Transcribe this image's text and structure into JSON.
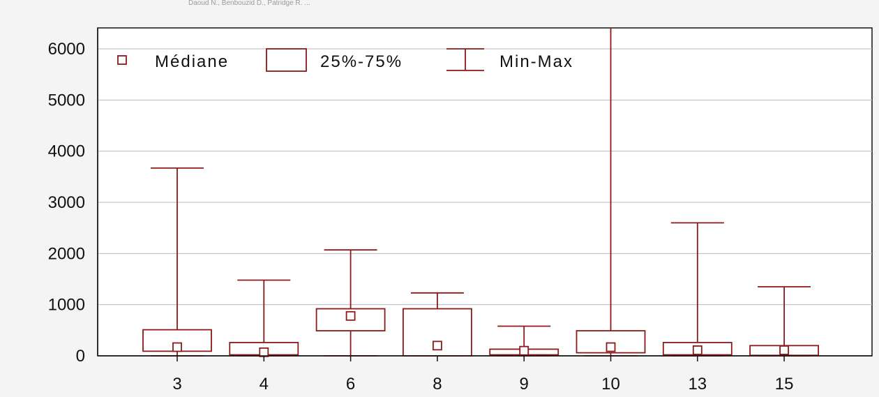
{
  "header_text": "Daoud N., Benbouzid D., Patridge R. ...",
  "colors": {
    "box": "#8b1a1a",
    "grid": "#b8b8b8",
    "axis": "#111111",
    "background": "#ffffff"
  },
  "chart_data": {
    "type": "boxplot",
    "title": "",
    "xlabel": "",
    "ylabel": "",
    "ylim": [
      0,
      6400
    ],
    "yticks": [
      0,
      1000,
      2000,
      3000,
      4000,
      5000,
      6000
    ],
    "grid": true,
    "legend": {
      "position": "top-left",
      "orientation": "horizontal",
      "entries": [
        "Médiane",
        "25%-75%",
        "Min-Max"
      ]
    },
    "categories": [
      "3",
      "4",
      "6",
      "8",
      "9",
      "10",
      "13",
      "15"
    ],
    "series": [
      {
        "category": "3",
        "min": 0,
        "q1": 90,
        "median": 170,
        "q3": 510,
        "max": 3670
      },
      {
        "category": "4",
        "min": 0,
        "q1": 20,
        "median": 70,
        "q3": 260,
        "max": 1480
      },
      {
        "category": "6",
        "min": 0,
        "q1": 490,
        "median": 780,
        "q3": 920,
        "max": 2070
      },
      {
        "category": "8",
        "min": 0,
        "q1": 0,
        "median": 200,
        "q3": 920,
        "max": 1230
      },
      {
        "category": "9",
        "min": 0,
        "q1": 20,
        "median": 100,
        "q3": 130,
        "max": 580
      },
      {
        "category": "10",
        "min": 0,
        "q1": 60,
        "median": 170,
        "q3": 490,
        "max": 6500
      },
      {
        "category": "13",
        "min": 0,
        "q1": 20,
        "median": 110,
        "q3": 260,
        "max": 2600
      },
      {
        "category": "15",
        "min": 0,
        "q1": 10,
        "median": 110,
        "q3": 200,
        "max": 1350
      }
    ]
  }
}
